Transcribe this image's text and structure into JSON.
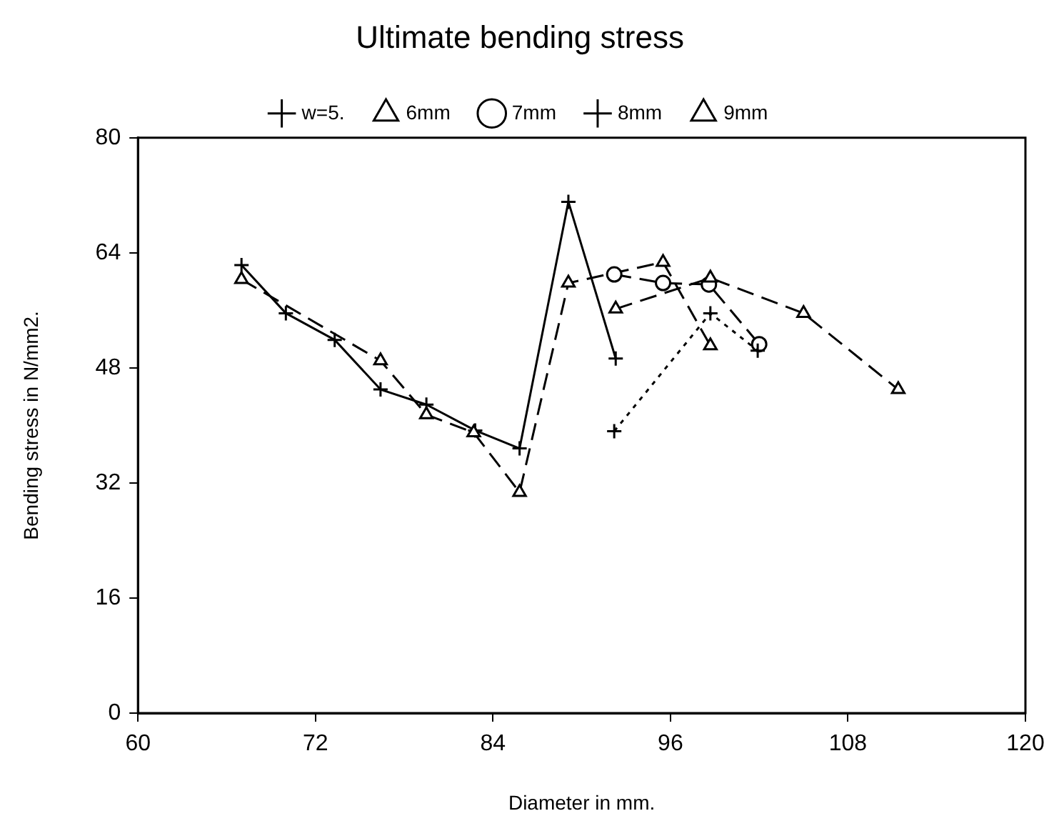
{
  "chart_data": {
    "type": "line",
    "title": "Ultimate bending stress",
    "xlabel": "Diameter in mm.",
    "ylabel": "Bending stress in N/mm2.",
    "xlim": [
      60,
      120
    ],
    "xticks": [
      60,
      72,
      84,
      96,
      108,
      120
    ],
    "ylim": [
      0,
      80
    ],
    "yticks": [
      0,
      16,
      32,
      48,
      64,
      80
    ],
    "grid": false,
    "legend": "top",
    "series": [
      {
        "name": "w=5.",
        "color": "#000000",
        "marker": "cross",
        "line_style": "solid",
        "x": [
          67.0,
          70.0,
          73.3,
          76.4,
          79.5,
          82.8,
          85.8,
          89.1,
          92.3
        ],
        "values": [
          62.3,
          55.6,
          51.9,
          45.0,
          42.9,
          39.3,
          36.8,
          71.1,
          49.3
        ]
      },
      {
        "name": "6mm",
        "color": "#000000",
        "marker": "triangle",
        "line_style": "dashed",
        "x": [
          67.0,
          76.4,
          79.5,
          82.7,
          85.8,
          89.1,
          95.5,
          98.7
        ],
        "values": [
          60.3,
          49.0,
          41.5,
          39.0,
          30.7,
          59.8,
          62.7,
          51.1
        ]
      },
      {
        "name": "7mm",
        "color": "#000000",
        "marker": "circle",
        "line_style": "dashed",
        "x": [
          92.2,
          95.5,
          98.6,
          102.0
        ],
        "values": [
          61.0,
          59.8,
          59.6,
          51.3
        ]
      },
      {
        "name": "8mm",
        "color": "#000000",
        "marker": "cross",
        "line_style": "dotted",
        "x": [
          92.2,
          98.7,
          101.9
        ],
        "values": [
          39.2,
          55.6,
          50.4
        ]
      },
      {
        "name": "9mm",
        "color": "#000000",
        "marker": "triangle",
        "line_style": "dashed",
        "x": [
          92.3,
          98.7,
          105.0,
          111.4
        ],
        "values": [
          56.2,
          60.5,
          55.6,
          45.0
        ]
      }
    ]
  }
}
